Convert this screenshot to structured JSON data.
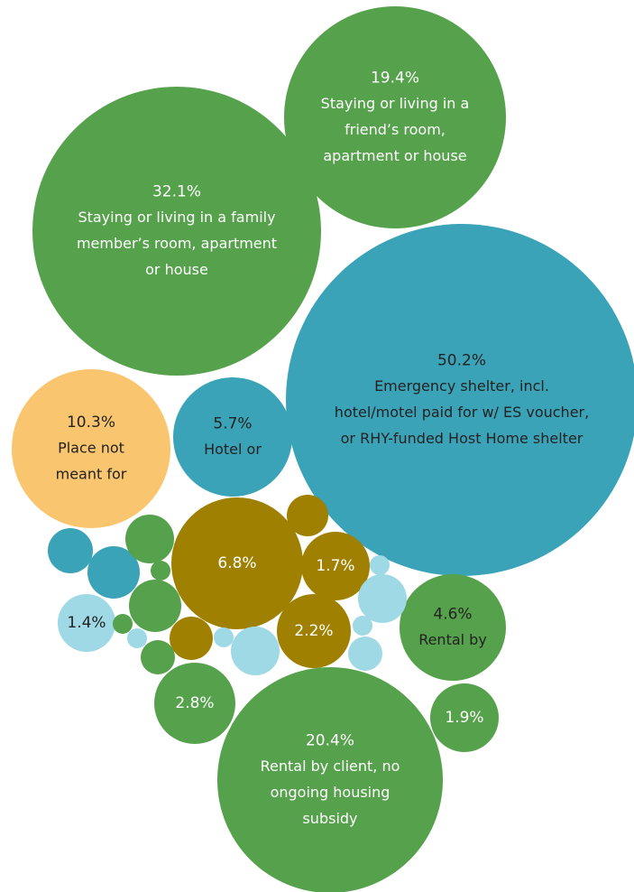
{
  "chart_data": {
    "type": "bubble",
    "title": "",
    "colors": {
      "green": "#56a14b",
      "teal": "#3aa3b8",
      "light_blue": "#9fd9e5",
      "gold": "#a08000",
      "yellow": "#f9c56e",
      "label_light": "#ffffff",
      "label_dark": "#222222"
    },
    "bubbles": [
      {
        "value": 50.2,
        "value_label": "50.2%",
        "label_lines": [
          "Emergency shelter, incl.",
          "hotel/motel paid for w/ ES voucher,",
          "or RHY-funded Host Home shelter"
        ],
        "color": "teal",
        "text": "dark"
      },
      {
        "value": 32.1,
        "value_label": "32.1%",
        "label_lines": [
          "Staying or living in a family",
          "member’s room, apartment",
          "or house"
        ],
        "color": "green",
        "text": "light"
      },
      {
        "value": 20.4,
        "value_label": "20.4%",
        "label_lines": [
          "Rental by client, no",
          "ongoing housing",
          "subsidy"
        ],
        "color": "green",
        "text": "light"
      },
      {
        "value": 19.4,
        "value_label": "19.4%",
        "label_lines": [
          "Staying or living in a",
          "friend’s room,",
          "apartment or house"
        ],
        "color": "green",
        "text": "light"
      },
      {
        "value": 10.3,
        "value_label": "10.3%",
        "label_lines": [
          "Place not",
          "meant for"
        ],
        "color": "yellow",
        "text": "dark"
      },
      {
        "value": 5.7,
        "value_label": "5.7%",
        "label_lines": [
          "Hotel or"
        ],
        "color": "teal",
        "text": "dark"
      },
      {
        "value": 6.8,
        "value_label": "6.8%",
        "label_lines": [],
        "color": "gold",
        "text": "light"
      },
      {
        "value": 4.6,
        "value_label": "4.6%",
        "label_lines": [
          "Rental by"
        ],
        "color": "green",
        "text": "dark"
      },
      {
        "value": 2.8,
        "value_label": "2.8%",
        "label_lines": [],
        "color": "green",
        "text": "light"
      },
      {
        "value": 2.2,
        "value_label": "2.2%",
        "label_lines": [],
        "color": "gold",
        "text": "light"
      },
      {
        "value": 1.9,
        "value_label": "1.9%",
        "label_lines": [],
        "color": "green",
        "text": "light"
      },
      {
        "value": 1.7,
        "value_label": "1.7%",
        "label_lines": [],
        "color": "gold",
        "text": "light"
      },
      {
        "value": 1.4,
        "value_label": "1.4%",
        "label_lines": [],
        "color": "light_blue",
        "text": "dark"
      },
      {
        "value": null,
        "value_label": "",
        "label_lines": [],
        "color": "gold",
        "text": "light"
      },
      {
        "value": null,
        "value_label": "",
        "label_lines": [],
        "color": "gold",
        "text": "light"
      },
      {
        "value": null,
        "value_label": "",
        "label_lines": [],
        "color": "teal",
        "text": "light"
      },
      {
        "value": null,
        "value_label": "",
        "label_lines": [],
        "color": "teal",
        "text": "light"
      },
      {
        "value": null,
        "value_label": "",
        "label_lines": [],
        "color": "green",
        "text": "light"
      },
      {
        "value": null,
        "value_label": "",
        "label_lines": [],
        "color": "green",
        "text": "light"
      },
      {
        "value": null,
        "value_label": "",
        "label_lines": [],
        "color": "green",
        "text": "light"
      },
      {
        "value": null,
        "value_label": "",
        "label_lines": [],
        "color": "green",
        "text": "light"
      },
      {
        "value": null,
        "value_label": "",
        "label_lines": [],
        "color": "green",
        "text": "light"
      },
      {
        "value": null,
        "value_label": "",
        "label_lines": [],
        "color": "light_blue",
        "text": "light"
      },
      {
        "value": null,
        "value_label": "",
        "label_lines": [],
        "color": "light_blue",
        "text": "light"
      },
      {
        "value": null,
        "value_label": "",
        "label_lines": [],
        "color": "light_blue",
        "text": "light"
      },
      {
        "value": null,
        "value_label": "",
        "label_lines": [],
        "color": "light_blue",
        "text": "light"
      },
      {
        "value": null,
        "value_label": "",
        "label_lines": [],
        "color": "light_blue",
        "text": "light"
      },
      {
        "value": null,
        "value_label": "",
        "label_lines": [],
        "color": "light_blue",
        "text": "light"
      },
      {
        "value": null,
        "value_label": "",
        "label_lines": [],
        "color": "light_blue",
        "text": "light"
      }
    ]
  }
}
